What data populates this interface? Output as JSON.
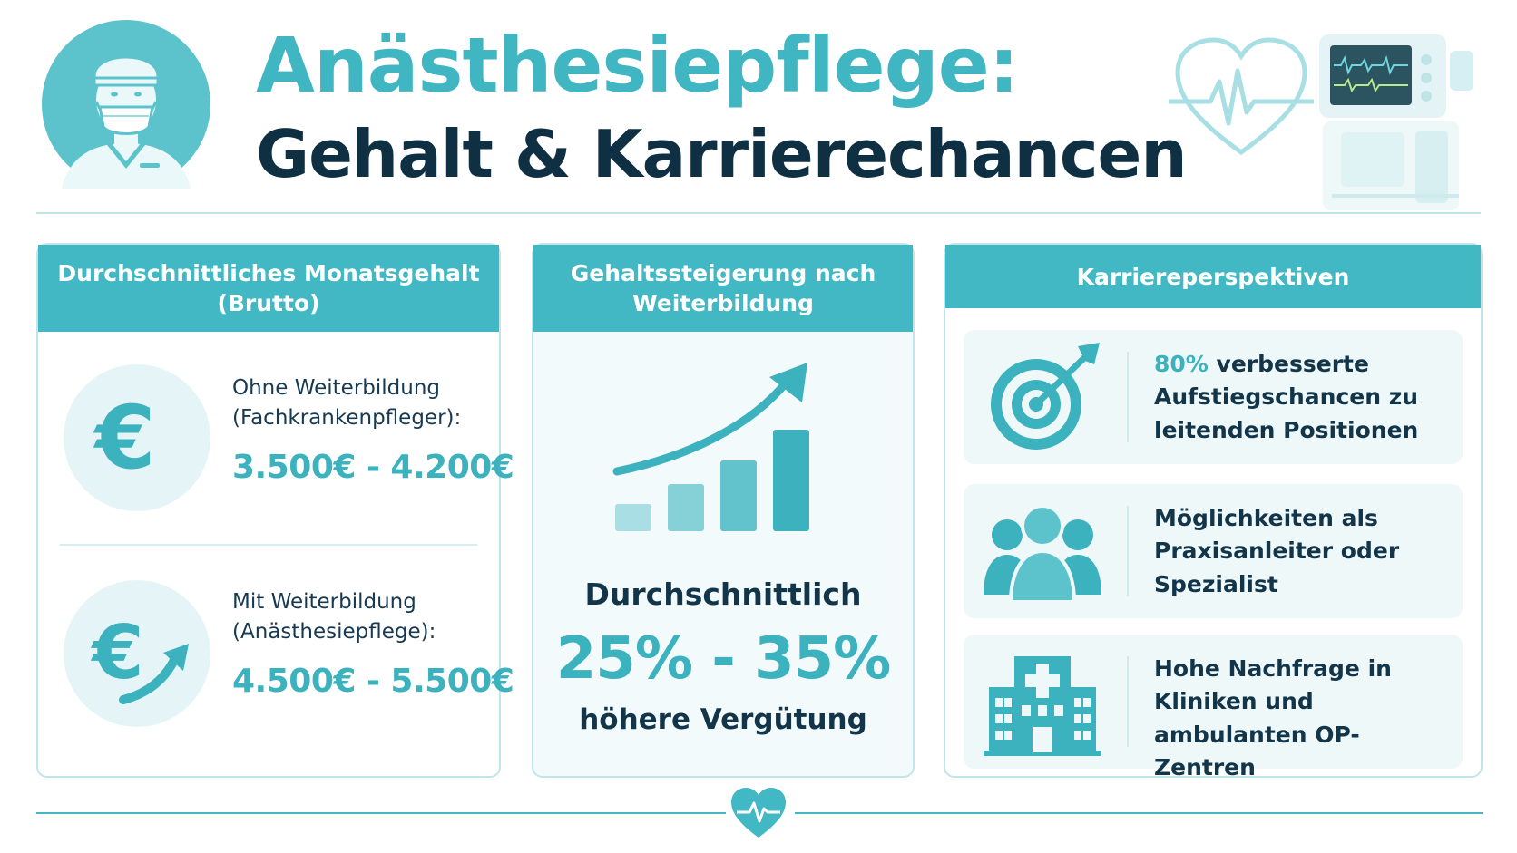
{
  "header": {
    "title_line1": "Anästhesiepflege:",
    "title_line2": "Gehalt & Karrierechancen",
    "icons": [
      "nurse-avatar-icon",
      "heartbeat-heart-icon",
      "anesthesia-monitor-icon"
    ]
  },
  "salary_card": {
    "heading": "Durchschnittliches Monatsgehalt (Brutto)",
    "without": {
      "label_line1": "Ohne Weiterbildung",
      "label_line2": "(Fachkrankenpfleger):",
      "value": "3.500€ - 4.200€",
      "icon": "euro-icon"
    },
    "with": {
      "label_line1": "Mit Weiterbildung",
      "label_line2": "(Anästhesiepflege):",
      "value": "4.500€ - 5.500€",
      "icon": "euro-growth-icon"
    }
  },
  "increase_card": {
    "heading": "Gehaltssteigerung nach Weiterbildung",
    "label": "Durchschnittlich",
    "value": "25% - 35%",
    "sub": "höhere Vergütung",
    "icon": "growth-bar-chart-icon"
  },
  "career_card": {
    "heading": "Karriereperspektiven",
    "items": [
      {
        "highlight": "80%",
        "text": " verbesserte Aufstiegschancen zu leitenden Positionen",
        "icon": "target-icon"
      },
      {
        "highlight": "",
        "text": "Möglichkeiten als Praxisanleiter oder Spezialist",
        "icon": "team-icon"
      },
      {
        "highlight": "",
        "text": "Hohe Nachfrage in Kliniken und ambulanten OP-Zentren",
        "icon": "hospital-icon"
      }
    ]
  },
  "colors": {
    "accent": "#41b8c3",
    "accent_text": "#3bb2be",
    "dark": "#13354a",
    "light_bg": "#eef8f9"
  }
}
